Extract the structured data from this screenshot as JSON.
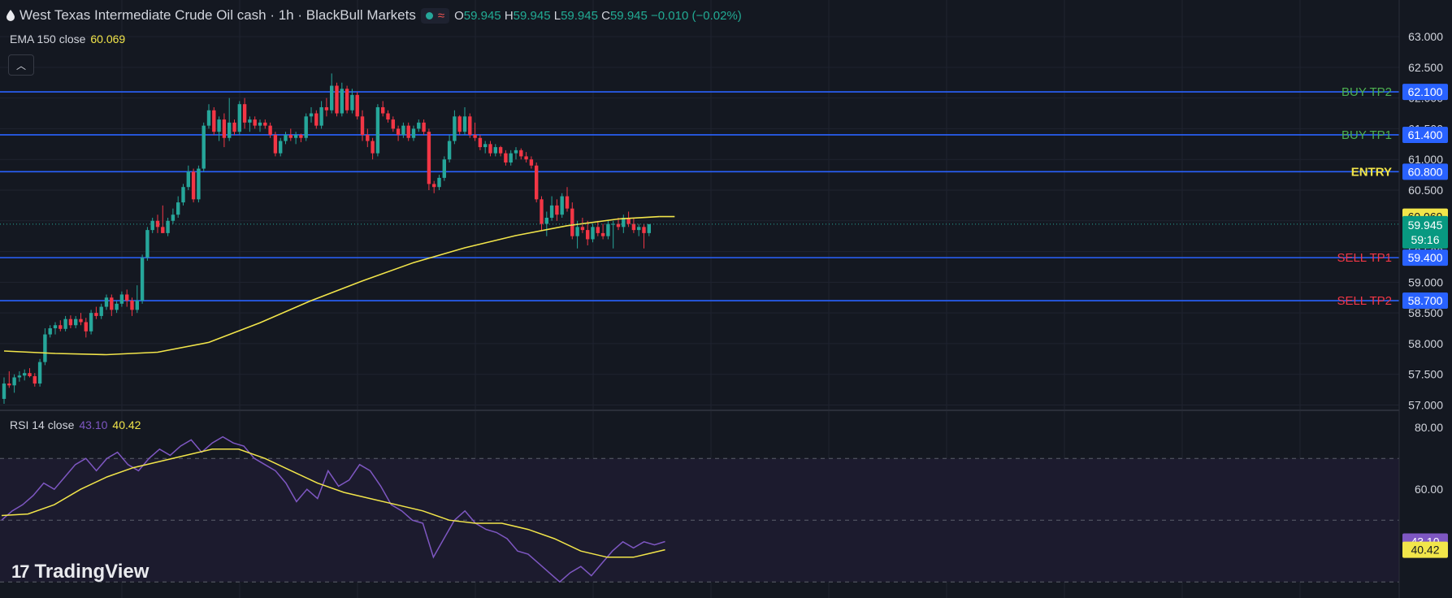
{
  "header": {
    "title": "West Texas Intermediate Crude Oil cash · 1h · BlackBull Markets",
    "status_symbol": "≈",
    "ohlc": {
      "o_label": "O",
      "o": "59.945",
      "h_label": "H",
      "h": "59.945",
      "l_label": "L",
      "l": "59.945",
      "c_label": "C",
      "c": "59.945",
      "change": "−0.010 (−0.02%)"
    }
  },
  "indicators": {
    "ema": {
      "label": "EMA 150 close",
      "value": "60.069"
    },
    "rsi": {
      "label": "RSI 14 close",
      "value": "43.10",
      "ma_value": "40.42"
    }
  },
  "branding": {
    "logo_text": "TradingView"
  },
  "colors": {
    "background": "#141821",
    "grid": "#1f2330",
    "up": "#26a69a",
    "down": "#f23645",
    "ema": "#f2e54a",
    "level_line": "#2962ff",
    "rsi": "#7e57c2",
    "rsi_ma": "#f2e54a",
    "buy_label": "#4caf50",
    "sell_label": "#f23645",
    "entry_label": "#f2e54a"
  },
  "chart_data": [
    {
      "type": "candlestick",
      "title": "West Texas Intermediate Crude Oil cash · 1h · BlackBull Markets",
      "price_axis": {
        "ticks": [
          "63.000",
          "62.500",
          "62.000",
          "61.500",
          "61.000",
          "60.500",
          "60.000",
          "59.500",
          "59.000",
          "58.500",
          "58.000",
          "57.500",
          "57.000"
        ],
        "ylim": [
          56.98,
          63.12
        ]
      },
      "grid": true,
      "ohlc": [
        [
          57.1,
          57.45,
          57.02,
          57.35
        ],
        [
          57.35,
          57.55,
          57.28,
          57.32
        ],
        [
          57.32,
          57.5,
          57.2,
          57.45
        ],
        [
          57.45,
          57.55,
          57.38,
          57.48
        ],
        [
          57.48,
          57.58,
          57.4,
          57.52
        ],
        [
          57.52,
          57.6,
          57.45,
          57.47
        ],
        [
          57.47,
          57.52,
          57.3,
          57.35
        ],
        [
          57.35,
          57.75,
          57.3,
          57.7
        ],
        [
          57.7,
          58.25,
          57.65,
          58.15
        ],
        [
          58.15,
          58.3,
          58.1,
          58.25
        ],
        [
          58.25,
          58.35,
          58.15,
          58.3
        ],
        [
          58.3,
          58.38,
          58.2,
          58.24
        ],
        [
          58.24,
          58.45,
          58.2,
          58.4
        ],
        [
          58.4,
          58.46,
          58.25,
          58.3
        ],
        [
          58.3,
          58.45,
          58.25,
          58.4
        ],
        [
          58.4,
          58.5,
          58.3,
          58.35
        ],
        [
          58.35,
          58.42,
          58.1,
          58.2
        ],
        [
          58.2,
          58.55,
          58.15,
          58.5
        ],
        [
          58.5,
          58.6,
          58.4,
          58.45
        ],
        [
          58.45,
          58.65,
          58.4,
          58.6
        ],
        [
          58.6,
          58.8,
          58.55,
          58.75
        ],
        [
          58.75,
          58.8,
          58.45,
          58.55
        ],
        [
          58.55,
          58.7,
          58.5,
          58.65
        ],
        [
          58.65,
          58.85,
          58.6,
          58.8
        ],
        [
          58.8,
          58.88,
          58.6,
          58.7
        ],
        [
          58.7,
          58.75,
          58.45,
          58.55
        ],
        [
          58.55,
          58.95,
          58.5,
          58.7
        ],
        [
          58.7,
          59.45,
          58.65,
          59.4
        ],
        [
          59.4,
          59.9,
          59.35,
          59.85
        ],
        [
          59.85,
          60.05,
          59.8,
          60.0
        ],
        [
          60.0,
          60.1,
          59.8,
          59.9
        ],
        [
          59.9,
          60.25,
          59.8,
          59.8
        ],
        [
          59.8,
          60.05,
          59.75,
          60.0
        ],
        [
          60.0,
          60.2,
          59.95,
          60.1
        ],
        [
          60.1,
          60.4,
          60.05,
          60.3
        ],
        [
          60.3,
          60.6,
          60.25,
          60.55
        ],
        [
          60.55,
          60.9,
          60.5,
          60.8
        ],
        [
          60.8,
          60.85,
          60.3,
          60.35
        ],
        [
          60.35,
          60.9,
          60.3,
          60.85
        ],
        [
          60.85,
          61.6,
          60.8,
          61.55
        ],
        [
          61.55,
          61.9,
          61.5,
          61.8
        ],
        [
          61.8,
          61.85,
          61.4,
          61.45
        ],
        [
          61.45,
          61.7,
          61.3,
          61.65
        ],
        [
          61.65,
          61.75,
          61.2,
          61.35
        ],
        [
          61.35,
          62.0,
          61.3,
          61.6
        ],
        [
          61.6,
          61.65,
          61.4,
          61.45
        ],
        [
          61.45,
          61.95,
          61.4,
          61.9
        ],
        [
          61.9,
          62.0,
          61.5,
          61.6
        ],
        [
          61.6,
          61.7,
          61.45,
          61.65
        ],
        [
          61.65,
          61.7,
          61.5,
          61.55
        ],
        [
          61.55,
          61.65,
          61.45,
          61.6
        ],
        [
          61.6,
          61.65,
          61.5,
          61.55
        ],
        [
          61.55,
          61.6,
          61.35,
          61.4
        ],
        [
          61.4,
          61.45,
          61.05,
          61.1
        ],
        [
          61.1,
          61.35,
          61.05,
          61.3
        ],
        [
          61.3,
          61.45,
          61.25,
          61.4
        ],
        [
          61.4,
          61.5,
          61.3,
          61.35
        ],
        [
          61.35,
          61.45,
          61.25,
          61.4
        ],
        [
          61.4,
          61.42,
          61.28,
          61.35
        ],
        [
          61.35,
          61.75,
          61.3,
          61.7
        ],
        [
          61.7,
          61.85,
          61.6,
          61.75
        ],
        [
          61.75,
          61.8,
          61.5,
          61.55
        ],
        [
          61.55,
          61.95,
          61.5,
          61.85
        ],
        [
          61.85,
          62.0,
          61.7,
          61.8
        ],
        [
          61.8,
          62.4,
          61.75,
          62.2
        ],
        [
          62.2,
          62.25,
          61.7,
          61.75
        ],
        [
          61.75,
          62.25,
          61.7,
          62.15
        ],
        [
          62.15,
          62.2,
          61.75,
          61.8
        ],
        [
          61.8,
          62.15,
          61.75,
          62.05
        ],
        [
          62.05,
          62.1,
          61.65,
          61.7
        ],
        [
          61.7,
          61.8,
          61.3,
          61.4
        ],
        [
          61.4,
          61.5,
          61.2,
          61.3
        ],
        [
          61.3,
          61.35,
          61.0,
          61.1
        ],
        [
          61.1,
          61.9,
          61.05,
          61.85
        ],
        [
          61.85,
          61.95,
          61.7,
          61.75
        ],
        [
          61.75,
          61.8,
          61.6,
          61.65
        ],
        [
          61.65,
          61.7,
          61.45,
          61.5
        ],
        [
          61.5,
          61.55,
          61.3,
          61.4
        ],
        [
          61.4,
          61.6,
          61.35,
          61.55
        ],
        [
          61.55,
          61.6,
          61.3,
          61.35
        ],
        [
          61.35,
          61.55,
          61.3,
          61.5
        ],
        [
          61.5,
          61.65,
          61.45,
          61.6
        ],
        [
          61.6,
          61.65,
          61.4,
          61.45
        ],
        [
          61.45,
          61.5,
          60.5,
          60.6
        ],
        [
          60.6,
          60.65,
          60.45,
          60.55
        ],
        [
          60.55,
          60.75,
          60.5,
          60.7
        ],
        [
          60.7,
          61.05,
          60.65,
          61.0
        ],
        [
          61.0,
          61.4,
          60.95,
          61.3
        ],
        [
          61.3,
          61.8,
          61.25,
          61.7
        ],
        [
          61.7,
          61.72,
          61.4,
          61.45
        ],
        [
          61.45,
          61.85,
          61.4,
          61.7
        ],
        [
          61.7,
          61.75,
          61.35,
          61.4
        ],
        [
          61.4,
          61.6,
          61.3,
          61.35
        ],
        [
          61.35,
          61.4,
          61.15,
          61.2
        ],
        [
          61.2,
          61.3,
          61.1,
          61.25
        ],
        [
          61.25,
          61.3,
          61.05,
          61.1
        ],
        [
          61.1,
          61.25,
          61.05,
          61.2
        ],
        [
          61.2,
          61.22,
          61.05,
          61.1
        ],
        [
          61.1,
          61.15,
          60.9,
          60.95
        ],
        [
          60.95,
          61.15,
          60.9,
          61.1
        ],
        [
          61.1,
          61.2,
          61.0,
          61.15
        ],
        [
          61.15,
          61.18,
          61.0,
          61.05
        ],
        [
          61.05,
          61.12,
          60.95,
          61.0
        ],
        [
          61.0,
          61.05,
          60.85,
          60.9
        ],
        [
          60.9,
          60.95,
          60.3,
          60.35
        ],
        [
          60.35,
          60.4,
          59.85,
          59.95
        ],
        [
          59.95,
          60.15,
          59.75,
          60.05
        ],
        [
          60.05,
          60.4,
          60.0,
          60.25
        ],
        [
          60.25,
          60.35,
          60.0,
          60.1
        ],
        [
          60.1,
          60.45,
          60.05,
          60.4
        ],
        [
          60.4,
          60.55,
          60.15,
          60.2
        ],
        [
          60.2,
          60.3,
          59.7,
          59.75
        ],
        [
          59.75,
          60.0,
          59.55,
          59.9
        ],
        [
          59.9,
          60.05,
          59.8,
          59.85
        ],
        [
          59.85,
          60.0,
          59.6,
          59.7
        ],
        [
          59.7,
          59.95,
          59.65,
          59.9
        ],
        [
          59.9,
          60.0,
          59.75,
          59.8
        ],
        [
          59.8,
          59.95,
          59.7,
          59.75
        ],
        [
          59.75,
          60.0,
          59.7,
          59.95
        ],
        [
          59.95,
          60.0,
          59.55,
          59.95
        ],
        [
          59.95,
          60.05,
          59.85,
          59.9
        ],
        [
          59.9,
          60.1,
          59.8,
          60.05
        ],
        [
          60.05,
          60.15,
          59.9,
          59.95
        ],
        [
          59.95,
          60.05,
          59.8,
          59.85
        ],
        [
          59.85,
          59.95,
          59.75,
          59.9
        ],
        [
          59.9,
          59.95,
          59.55,
          59.8
        ],
        [
          59.8,
          59.95,
          59.75,
          59.945
        ]
      ],
      "ema_150": [
        [
          0,
          57.88
        ],
        [
          10,
          57.84
        ],
        [
          20,
          57.82
        ],
        [
          30,
          57.86
        ],
        [
          40,
          58.02
        ],
        [
          50,
          58.34
        ],
        [
          60,
          58.7
        ],
        [
          70,
          59.02
        ],
        [
          80,
          59.32
        ],
        [
          90,
          59.56
        ],
        [
          100,
          59.76
        ],
        [
          110,
          59.92
        ],
        [
          120,
          60.03
        ],
        [
          128,
          60.069
        ]
      ],
      "levels": [
        {
          "name": "BUY TP2",
          "value": "62.100"
        },
        {
          "name": "BUY TP1",
          "value": "61.400"
        },
        {
          "name": "ENTRY",
          "value": "60.800"
        },
        {
          "name": "SELL TP1",
          "value": "59.400"
        },
        {
          "name": "SELL TP2",
          "value": "58.700"
        }
      ],
      "price_tags": {
        "ema": "60.069",
        "last": "59.945",
        "countdown": "59:16"
      }
    },
    {
      "type": "line",
      "title": "RSI 14 close",
      "rsi_axis": {
        "ticks": [
          "80.00",
          "60.00"
        ],
        "ylim": [
          24.8,
          84.8
        ],
        "bands": [
          70,
          50,
          30
        ]
      },
      "grid": true,
      "rsi": [
        [
          0,
          50
        ],
        [
          4,
          53
        ],
        [
          8,
          55
        ],
        [
          12,
          58
        ],
        [
          16,
          62
        ],
        [
          20,
          60
        ],
        [
          24,
          64
        ],
        [
          28,
          68
        ],
        [
          32,
          70
        ],
        [
          36,
          66
        ],
        [
          40,
          70
        ],
        [
          44,
          72
        ],
        [
          48,
          68
        ],
        [
          52,
          66
        ],
        [
          56,
          70
        ],
        [
          60,
          73
        ],
        [
          64,
          71
        ],
        [
          68,
          74
        ],
        [
          72,
          76
        ],
        [
          76,
          72
        ],
        [
          80,
          75
        ],
        [
          84,
          77
        ],
        [
          88,
          75
        ],
        [
          92,
          74
        ],
        [
          96,
          70
        ],
        [
          100,
          68
        ],
        [
          104,
          66
        ],
        [
          108,
          62
        ],
        [
          112,
          56
        ],
        [
          116,
          60
        ],
        [
          120,
          57
        ],
        [
          124,
          66
        ],
        [
          128,
          61
        ],
        [
          132,
          63
        ],
        [
          136,
          68
        ],
        [
          140,
          66
        ],
        [
          144,
          61
        ],
        [
          148,
          55
        ],
        [
          152,
          53
        ],
        [
          156,
          50
        ],
        [
          160,
          49
        ],
        [
          164,
          38
        ],
        [
          168,
          44
        ],
        [
          172,
          50
        ],
        [
          176,
          53
        ],
        [
          180,
          49
        ],
        [
          184,
          47
        ],
        [
          188,
          46
        ],
        [
          192,
          44
        ],
        [
          196,
          40
        ],
        [
          200,
          39
        ],
        [
          204,
          36
        ],
        [
          208,
          33
        ],
        [
          212,
          30
        ],
        [
          216,
          33
        ],
        [
          220,
          35
        ],
        [
          224,
          32
        ],
        [
          228,
          36
        ],
        [
          232,
          40
        ],
        [
          236,
          43
        ],
        [
          240,
          41
        ],
        [
          244,
          43
        ],
        [
          248,
          42
        ],
        [
          252,
          43.1
        ]
      ],
      "rsi_ma": [
        [
          0,
          51.5
        ],
        [
          10,
          52
        ],
        [
          20,
          55
        ],
        [
          30,
          60
        ],
        [
          40,
          64
        ],
        [
          50,
          67
        ],
        [
          60,
          69
        ],
        [
          70,
          71
        ],
        [
          80,
          73
        ],
        [
          90,
          73
        ],
        [
          100,
          70
        ],
        [
          110,
          66
        ],
        [
          120,
          62
        ],
        [
          130,
          59
        ],
        [
          140,
          57
        ],
        [
          150,
          55
        ],
        [
          160,
          53
        ],
        [
          170,
          50
        ],
        [
          180,
          49
        ],
        [
          190,
          49
        ],
        [
          200,
          47
        ],
        [
          210,
          44
        ],
        [
          220,
          40
        ],
        [
          230,
          38
        ],
        [
          240,
          38
        ],
        [
          245,
          39
        ],
        [
          252,
          40.42
        ]
      ],
      "value_tags": {
        "rsi": "43.10",
        "ma": "40.42"
      }
    }
  ]
}
